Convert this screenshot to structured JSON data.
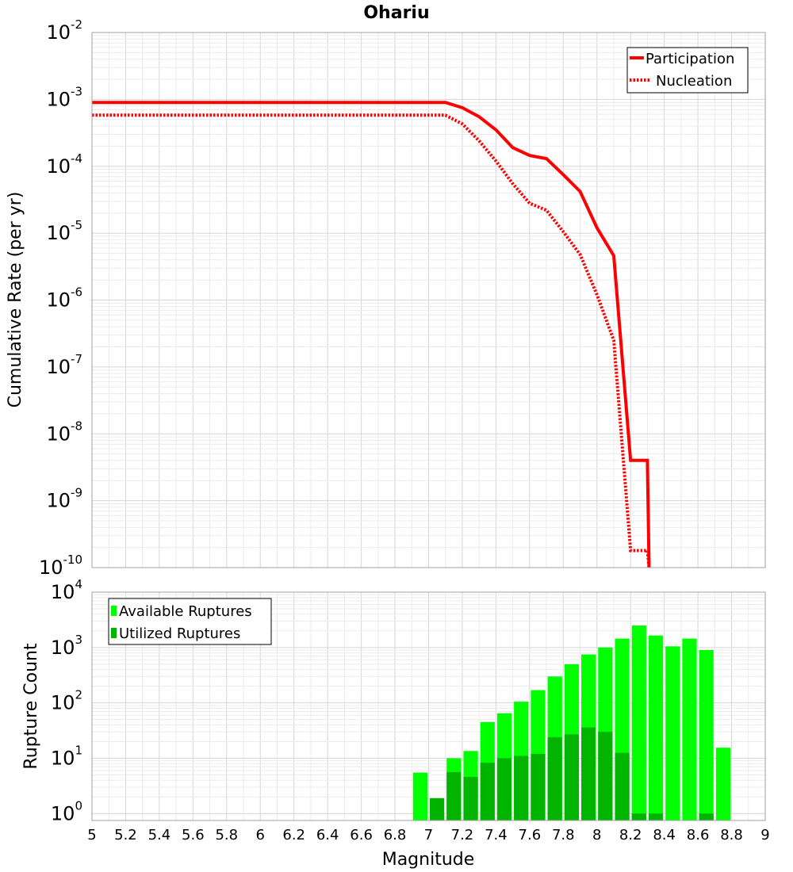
{
  "chart_data": [
    {
      "type": "line",
      "title": "Ohariu",
      "xlabel": "Magnitude",
      "ylabel": "Cumulative Rate (per yr)",
      "xlim": [
        5,
        9
      ],
      "ylim": [
        1e-10,
        0.01
      ],
      "yscale": "log",
      "y_tick_exponents": [
        "-2",
        "-3",
        "-4",
        "-5",
        "-6",
        "-7",
        "-8",
        "-9",
        "-10"
      ],
      "y_tick_base": "10",
      "legend": {
        "position": "top-right",
        "entries": [
          "Participation",
          "Nucleation"
        ]
      },
      "series": [
        {
          "name": "Participation",
          "style": "solid",
          "color": "#ff0000",
          "x": [
            5.0,
            7.1,
            7.2,
            7.3,
            7.4,
            7.5,
            7.6,
            7.7,
            7.8,
            7.9,
            8.0,
            8.1,
            8.2,
            8.3,
            8.31
          ],
          "y": [
            0.0009,
            0.0009,
            0.00075,
            0.00055,
            0.00035,
            0.00019,
            0.000145,
            0.00013,
            7.5e-05,
            4.2e-05,
            1.2e-05,
            4.6e-06,
            4e-09,
            4e-09,
            1e-10
          ]
        },
        {
          "name": "Nucleation",
          "style": "dotted",
          "color": "#ff0000",
          "x": [
            5.0,
            7.1,
            7.2,
            7.3,
            7.4,
            7.5,
            7.6,
            7.7,
            7.8,
            7.9,
            8.0,
            8.1,
            8.2,
            8.3,
            8.31
          ],
          "y": [
            0.00058,
            0.00058,
            0.00043,
            0.00024,
            0.00012,
            5.5e-05,
            2.8e-05,
            2.2e-05,
            1.05e-05,
            4.8e-06,
            1.2e-06,
            2.5e-07,
            1.8e-10,
            1.8e-10,
            1e-10
          ]
        }
      ]
    },
    {
      "type": "bar",
      "xlabel": "Magnitude",
      "ylabel": "Rupture Count",
      "xlim": [
        5,
        9
      ],
      "ylim": [
        0.75,
        10000
      ],
      "yscale": "log",
      "y_tick_exponents": [
        "4",
        "3",
        "2",
        "1",
        "0"
      ],
      "y_tick_base": "10",
      "x_ticks": [
        "5",
        "5.2",
        "5.4",
        "5.6",
        "5.8",
        "6",
        "6.2",
        "6.4",
        "6.6",
        "6.8",
        "7",
        "7.2",
        "7.4",
        "7.6",
        "7.8",
        "8",
        "8.2",
        "8.4",
        "8.6",
        "8.8",
        "9"
      ],
      "bin_width": 0.1,
      "legend": {
        "position": "top-left",
        "entries": [
          "Available Ruptures",
          "Utilized Ruptures"
        ]
      },
      "series": [
        {
          "name": "Available Ruptures",
          "color": "#00ff00",
          "x": [
            6.95,
            7.05,
            7.15,
            7.25,
            7.35,
            7.45,
            7.55,
            7.65,
            7.75,
            7.85,
            7.95,
            8.05,
            8.15,
            8.25,
            8.35,
            8.45,
            8.55,
            8.65,
            8.75
          ],
          "values": [
            5.5,
            1,
            10,
            13.5,
            45,
            65,
            105,
            170,
            300,
            500,
            750,
            1000,
            1450,
            2500,
            1650,
            1050,
            1450,
            900,
            15.5
          ]
        },
        {
          "name": "Utilized Ruptures",
          "color": "#00b400",
          "x": [
            7.05,
            7.15,
            7.25,
            7.35,
            7.45,
            7.55,
            7.65,
            7.75,
            7.85,
            7.95,
            8.05,
            8.15,
            8.25,
            8.35,
            8.65
          ],
          "values": [
            1.9,
            5.6,
            4.6,
            8.3,
            10,
            11,
            12,
            24,
            27,
            36,
            30,
            12.5,
            1,
            1,
            1
          ]
        }
      ]
    }
  ]
}
